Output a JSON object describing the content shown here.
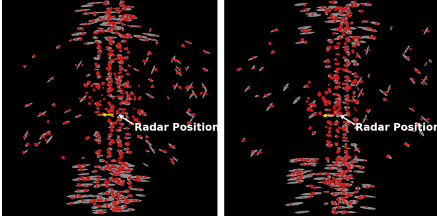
{
  "panels": [
    {
      "id": "left",
      "annotation": {
        "label": "Radar Position"
      }
    },
    {
      "id": "right",
      "annotation": {
        "label": "Radar Position"
      }
    }
  ],
  "colors": {
    "background": "#000000",
    "blob": "#8a8a8a",
    "point": "#d01a1a",
    "arrow_lateral": "#f2e600",
    "arrow_forward": "#e01010",
    "annotation": "#ffffff"
  }
}
